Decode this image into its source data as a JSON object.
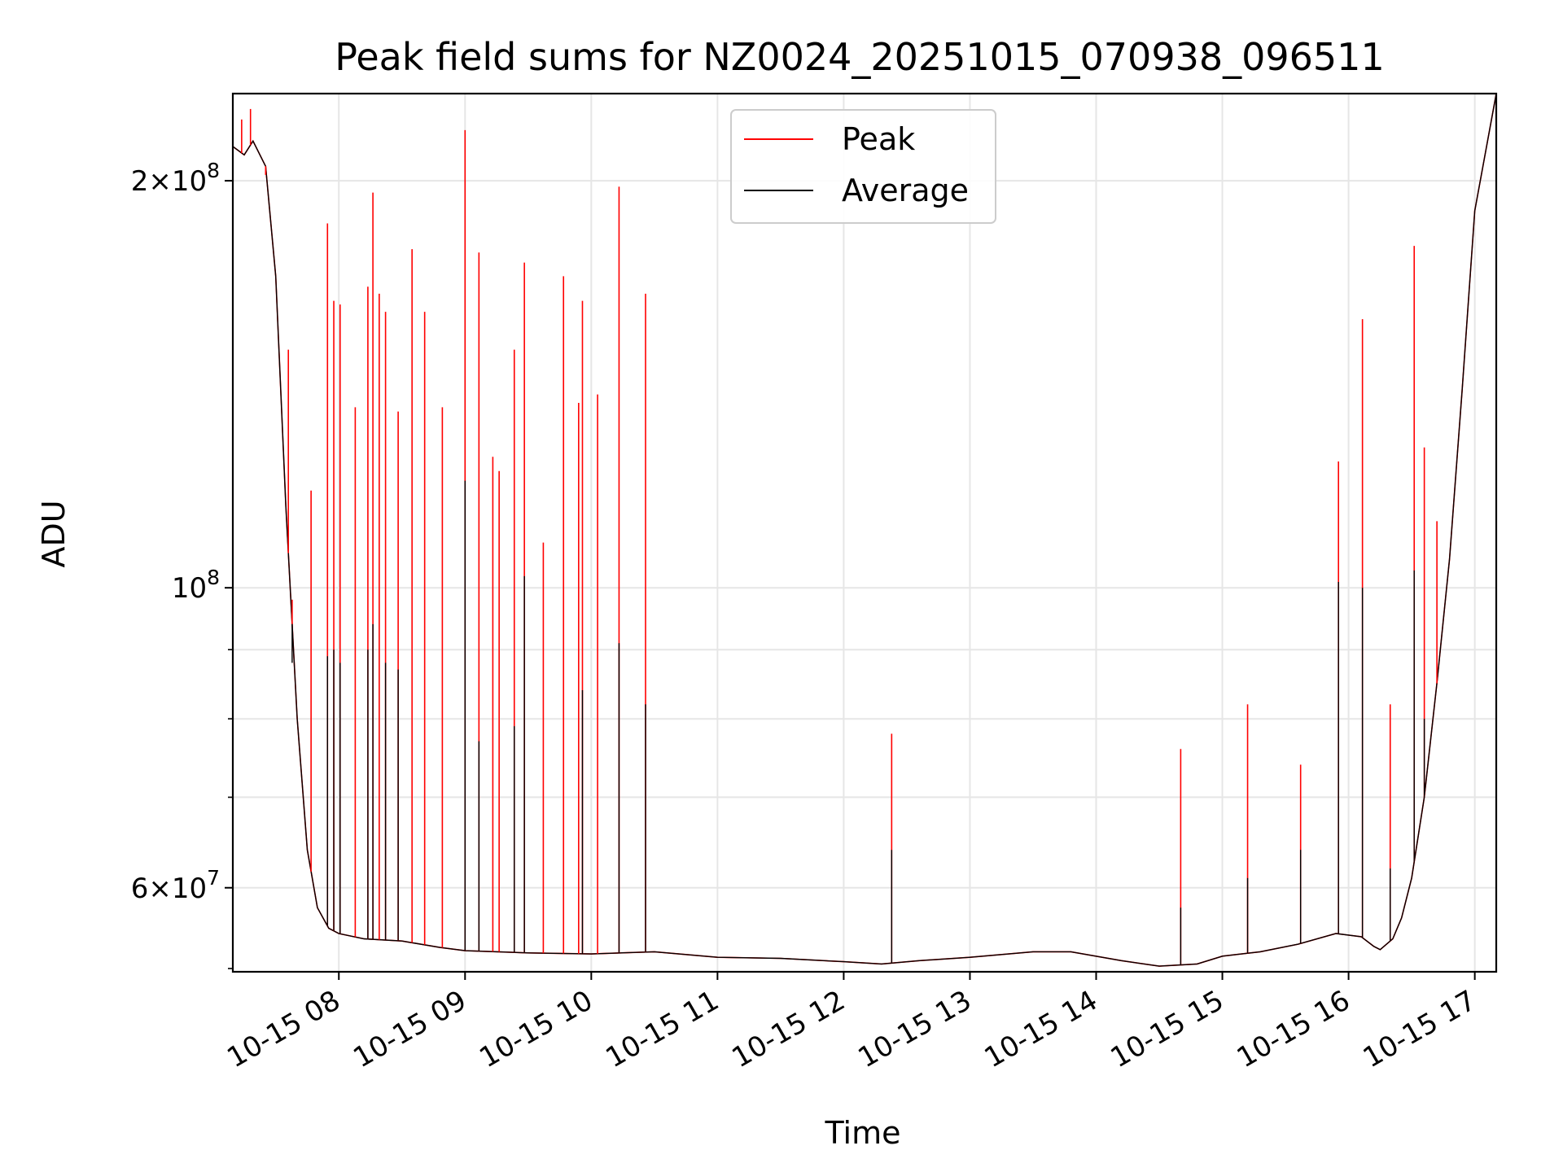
{
  "chart_data": {
    "type": "line",
    "title": "Peak field sums for NZ0024_20251015_070938_096511",
    "xlabel": "Time",
    "ylabel": "ADU",
    "yscale": "log",
    "xlim_hours": [
      7.16,
      17.17
    ],
    "ylim": [
      52000000,
      232000000
    ],
    "grid": true,
    "legend": {
      "position": "top-center",
      "entries": [
        "Peak",
        "Average"
      ]
    },
    "colors": {
      "peak": "#ff0000",
      "average": "#000000",
      "grid": "#e6e6e6"
    },
    "x_ticks": [
      {
        "value": 8,
        "label": "10-15 08"
      },
      {
        "value": 9,
        "label": "10-15 09"
      },
      {
        "value": 10,
        "label": "10-15 10"
      },
      {
        "value": 11,
        "label": "10-15 11"
      },
      {
        "value": 12,
        "label": "10-15 12"
      },
      {
        "value": 13,
        "label": "10-15 13"
      },
      {
        "value": 14,
        "label": "10-15 14"
      },
      {
        "value": 15,
        "label": "10-15 15"
      },
      {
        "value": 16,
        "label": "10-15 16"
      },
      {
        "value": 17,
        "label": "10-15 17"
      }
    ],
    "y_major_ticks": [
      {
        "value": 60000000,
        "mant": "6",
        "exp": "7"
      },
      {
        "value": 100000000,
        "mant": "",
        "exp": "8"
      },
      {
        "value": 200000000,
        "mant": "2",
        "exp": "8"
      }
    ],
    "y_minor_ticks": [
      70000000,
      80000000,
      90000000
    ],
    "average_series": [
      [
        7.16,
        212000000
      ],
      [
        7.25,
        209000000
      ],
      [
        7.32,
        214000000
      ],
      [
        7.42,
        205000000
      ],
      [
        7.5,
        170000000
      ],
      [
        7.58,
        115000000
      ],
      [
        7.67,
        80000000
      ],
      [
        7.75,
        64000000
      ],
      [
        7.83,
        58000000
      ],
      [
        7.92,
        56000000
      ],
      [
        8.0,
        55500000
      ],
      [
        8.2,
        55000000
      ],
      [
        8.5,
        54800000
      ],
      [
        8.8,
        54200000
      ],
      [
        9.0,
        53900000
      ],
      [
        9.5,
        53700000
      ],
      [
        10.0,
        53600000
      ],
      [
        10.5,
        53800000
      ],
      [
        11.0,
        53300000
      ],
      [
        11.5,
        53200000
      ],
      [
        12.0,
        52900000
      ],
      [
        12.3,
        52700000
      ],
      [
        12.6,
        53000000
      ],
      [
        13.0,
        53300000
      ],
      [
        13.5,
        53800000
      ],
      [
        13.8,
        53800000
      ],
      [
        14.2,
        53000000
      ],
      [
        14.5,
        52500000
      ],
      [
        14.8,
        52700000
      ],
      [
        15.0,
        53400000
      ],
      [
        15.3,
        53800000
      ],
      [
        15.6,
        54500000
      ],
      [
        15.9,
        55500000
      ],
      [
        16.1,
        55200000
      ],
      [
        16.2,
        54300000
      ],
      [
        16.25,
        54000000
      ],
      [
        16.35,
        55000000
      ],
      [
        16.42,
        57000000
      ],
      [
        16.5,
        61000000
      ],
      [
        16.6,
        70000000
      ],
      [
        16.7,
        85000000
      ],
      [
        16.8,
        105000000
      ],
      [
        16.9,
        140000000
      ],
      [
        17.0,
        190000000
      ],
      [
        17.17,
        232000000
      ]
    ],
    "peak_spikes": [
      [
        7.23,
        222000000
      ],
      [
        7.3,
        226000000
      ],
      [
        7.42,
        202000000
      ],
      [
        7.6,
        150000000
      ],
      [
        7.63,
        98000000
      ],
      [
        7.78,
        118000000
      ],
      [
        7.91,
        186000000
      ],
      [
        7.96,
        163000000
      ],
      [
        8.01,
        162000000
      ],
      [
        8.13,
        136000000
      ],
      [
        8.23,
        167000000
      ],
      [
        8.27,
        196000000
      ],
      [
        8.32,
        165000000
      ],
      [
        8.37,
        160000000
      ],
      [
        8.47,
        135000000
      ],
      [
        8.58,
        178000000
      ],
      [
        8.68,
        160000000
      ],
      [
        8.82,
        136000000
      ],
      [
        9.0,
        218000000
      ],
      [
        9.11,
        177000000
      ],
      [
        9.22,
        125000000
      ],
      [
        9.27,
        122000000
      ],
      [
        9.39,
        150000000
      ],
      [
        9.47,
        174000000
      ],
      [
        9.62,
        108000000
      ],
      [
        9.78,
        170000000
      ],
      [
        9.9,
        137000000
      ],
      [
        9.93,
        163000000
      ],
      [
        10.05,
        139000000
      ],
      [
        10.22,
        198000000
      ],
      [
        10.43,
        165000000
      ],
      [
        12.38,
        78000000
      ],
      [
        14.67,
        76000000
      ],
      [
        15.2,
        82000000
      ],
      [
        15.62,
        74000000
      ],
      [
        15.92,
        124000000
      ],
      [
        16.11,
        158000000
      ],
      [
        16.33,
        82000000
      ],
      [
        16.52,
        179000000
      ],
      [
        16.6,
        127000000
      ],
      [
        16.7,
        112000000
      ]
    ],
    "average_spikes": [
      [
        7.63,
        88000000
      ],
      [
        7.91,
        89000000
      ],
      [
        7.96,
        90000000
      ],
      [
        8.01,
        88000000
      ],
      [
        8.23,
        90000000
      ],
      [
        8.27,
        94000000
      ],
      [
        8.37,
        88000000
      ],
      [
        8.47,
        87000000
      ],
      [
        9.0,
        120000000
      ],
      [
        9.11,
        77000000
      ],
      [
        9.39,
        79000000
      ],
      [
        9.47,
        102000000
      ],
      [
        9.93,
        84000000
      ],
      [
        10.22,
        91000000
      ],
      [
        10.43,
        82000000
      ],
      [
        12.38,
        64000000
      ],
      [
        14.67,
        58000000
      ],
      [
        15.2,
        61000000
      ],
      [
        15.62,
        64000000
      ],
      [
        15.92,
        101000000
      ],
      [
        16.11,
        100000000
      ],
      [
        16.33,
        62000000
      ],
      [
        16.52,
        103000000
      ],
      [
        16.6,
        80000000
      ]
    ]
  }
}
